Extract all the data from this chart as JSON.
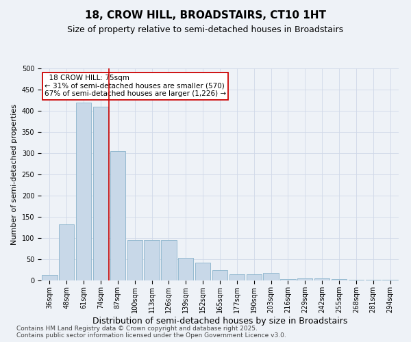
{
  "title": "18, CROW HILL, BROADSTAIRS, CT10 1HT",
  "subtitle": "Size of property relative to semi-detached houses in Broadstairs",
  "xlabel": "Distribution of semi-detached houses by size in Broadstairs",
  "ylabel": "Number of semi-detached properties",
  "categories": [
    "36sqm",
    "48sqm",
    "61sqm",
    "74sqm",
    "87sqm",
    "100sqm",
    "113sqm",
    "126sqm",
    "139sqm",
    "152sqm",
    "165sqm",
    "177sqm",
    "190sqm",
    "203sqm",
    "216sqm",
    "229sqm",
    "242sqm",
    "255sqm",
    "268sqm",
    "281sqm",
    "294sqm"
  ],
  "values": [
    13,
    133,
    420,
    410,
    305,
    95,
    95,
    95,
    53,
    42,
    25,
    14,
    14,
    17,
    3,
    5,
    5,
    3,
    2,
    1,
    2
  ],
  "bar_color": "#c8d8e8",
  "bar_edge_color": "#8ab4cc",
  "property_label": "18 CROW HILL: 75sqm",
  "pct_smaller": 31,
  "count_smaller": 570,
  "pct_larger": 67,
  "count_larger": 1226,
  "annotation_box_color": "#ffffff",
  "annotation_box_edge": "#cc0000",
  "vline_color": "#cc0000",
  "grid_color": "#d0d8e8",
  "bg_color": "#eef2f7",
  "ylim": [
    0,
    500
  ],
  "yticks": [
    0,
    50,
    100,
    150,
    200,
    250,
    300,
    350,
    400,
    450,
    500
  ],
  "footer": "Contains HM Land Registry data © Crown copyright and database right 2025.\nContains public sector information licensed under the Open Government Licence v3.0.",
  "title_fontsize": 11,
  "subtitle_fontsize": 9,
  "xlabel_fontsize": 9,
  "ylabel_fontsize": 8,
  "tick_fontsize": 7,
  "annotation_fontsize": 7.5,
  "footer_fontsize": 6.5
}
